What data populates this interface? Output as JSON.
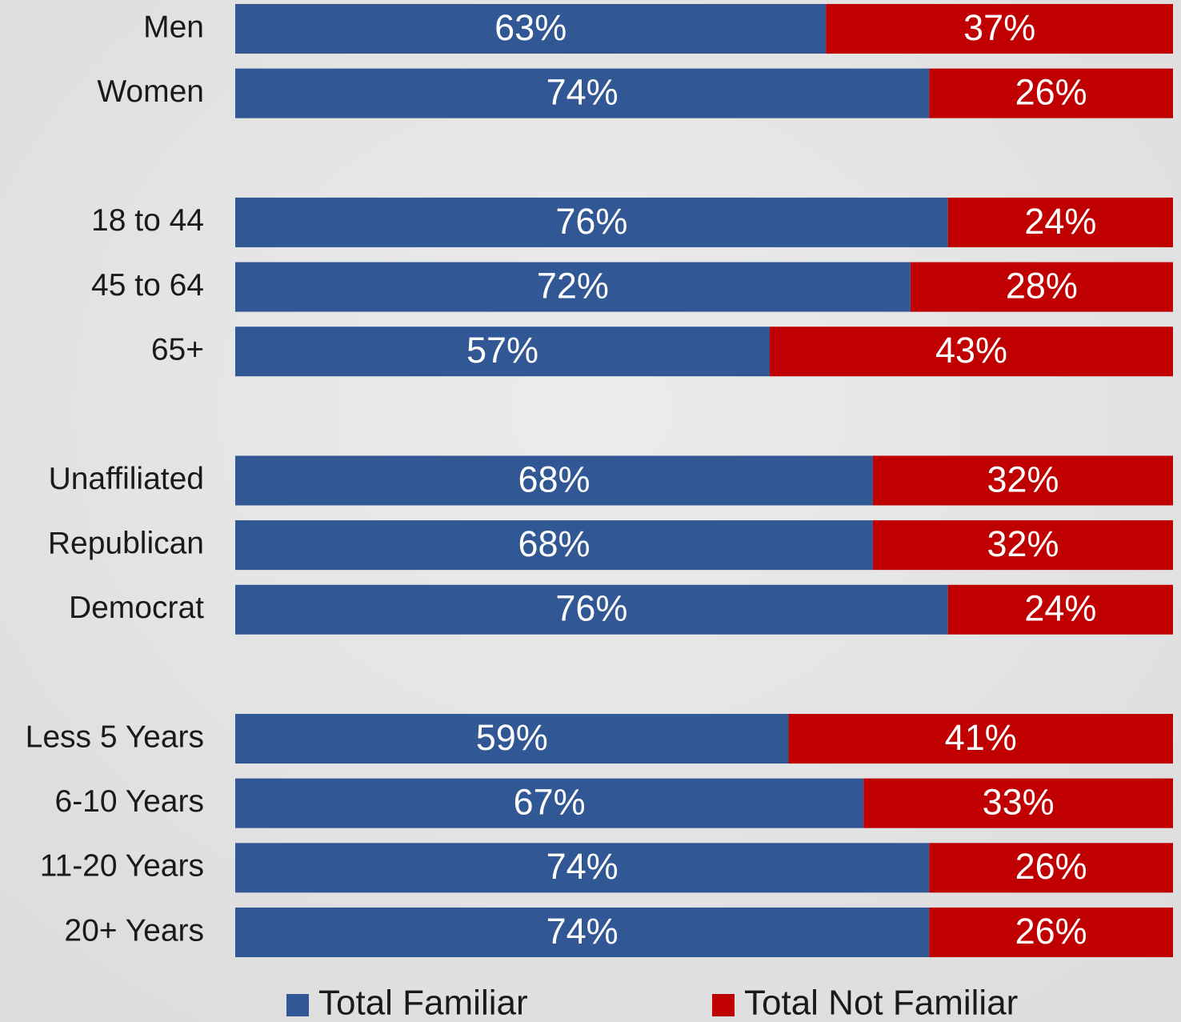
{
  "chart_data": {
    "type": "stacked-bar-horizontal",
    "categories": [
      "Men",
      "Women",
      null,
      "18 to 44",
      "45 to 64",
      "65+",
      null,
      "Unaffiliated",
      "Republican",
      "Democrat",
      null,
      "Less 5 Years",
      "6-10 Years",
      "11-20 Years",
      "20+ Years"
    ],
    "series": [
      {
        "name": "Total Familiar",
        "color": "#315795",
        "values": [
          63,
          74,
          null,
          76,
          72,
          57,
          null,
          68,
          68,
          76,
          null,
          59,
          67,
          74,
          74
        ],
        "value_labels": [
          "63%",
          "74%",
          null,
          "76%",
          "72%",
          "57%",
          null,
          "68%",
          "68%",
          "76%",
          null,
          "59%",
          "67%",
          "74%",
          "74%"
        ]
      },
      {
        "name": "Total Not Familiar",
        "color": "#c00000",
        "values": [
          37,
          26,
          null,
          24,
          28,
          43,
          null,
          32,
          32,
          24,
          null,
          41,
          33,
          26,
          26
        ],
        "value_labels": [
          "37%",
          "26%",
          null,
          "24%",
          "28%",
          "43%",
          null,
          "32%",
          "32%",
          "24%",
          null,
          "41%",
          "33%",
          "26%",
          "26%"
        ]
      }
    ],
    "xlim": [
      0,
      100
    ],
    "legend": "bottom"
  }
}
